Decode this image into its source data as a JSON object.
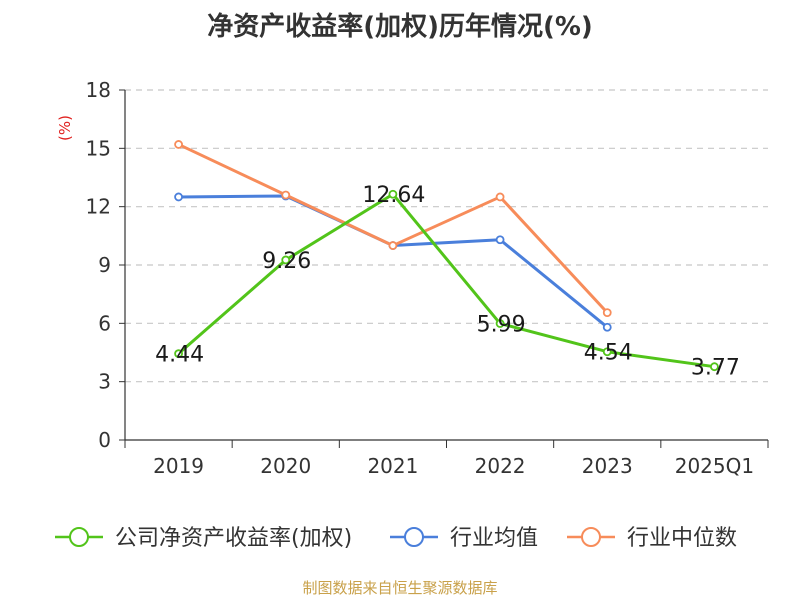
{
  "chart_data": {
    "type": "line",
    "title": "净资产收益率(加权)历年情况(%)",
    "ylabel": "(%)",
    "xlabel": "",
    "ylim": [
      0,
      18
    ],
    "yticks": [
      0,
      3,
      6,
      9,
      12,
      15,
      18
    ],
    "categories": [
      "2019",
      "2020",
      "2021",
      "2022",
      "2023",
      "2025Q1"
    ],
    "grid": true,
    "legend_position": "bottom",
    "series": [
      {
        "name": "公司净资产收益率(加权)",
        "color": "#52c41a",
        "values": [
          4.44,
          9.26,
          12.64,
          5.99,
          4.54,
          3.77
        ],
        "labels": [
          "4.44",
          "9.26",
          "12.64",
          "5.99",
          "4.54",
          "3.77"
        ]
      },
      {
        "name": "行业均值",
        "color": "#4a7fdb",
        "values": [
          12.5,
          12.55,
          10.0,
          10.3,
          5.8,
          null
        ]
      },
      {
        "name": "行业中位数",
        "color": "#f78c5a",
        "values": [
          15.2,
          12.6,
          10.0,
          12.5,
          6.55,
          null
        ]
      }
    ]
  },
  "footer": {
    "source": "制图数据来自恒生聚源数据库"
  }
}
